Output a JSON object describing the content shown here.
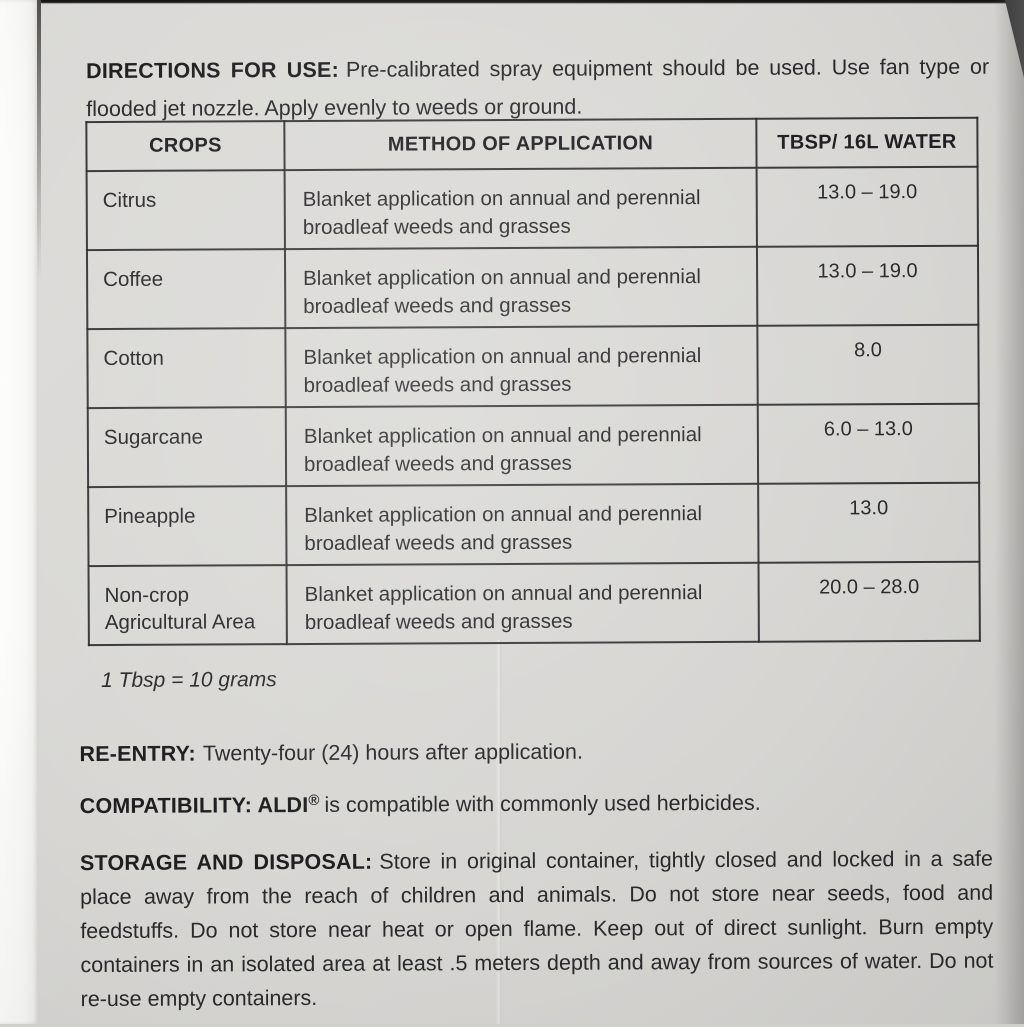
{
  "colors": {
    "label_bg": "#d9d8d5",
    "page_edge_white": "#fdfdfc",
    "text": "#2a2a2d",
    "table_border": "#2a2a2c",
    "photo_corner_dark": "#3a3a3c"
  },
  "directions": {
    "heading": "DIRECTIONS FOR USE:",
    "body": "Pre-calibrated spray equipment should be used. Use fan type or flooded jet nozzle. Apply evenly to weeds or ground."
  },
  "rate_table": {
    "columns": [
      "CROPS",
      "METHOD OF APPLICATION",
      "TBSP/ 16L WATER"
    ],
    "rows": [
      {
        "crop": "Citrus",
        "method": "Blanket application on annual and perennial broadleaf weeds and grasses",
        "rate": "13.0 – 19.0"
      },
      {
        "crop": "Coffee",
        "method": "Blanket application on annual and perennial broadleaf weeds and grasses",
        "rate": "13.0 – 19.0"
      },
      {
        "crop": "Cotton",
        "method": "Blanket application on annual and perennial broadleaf weeds and grasses",
        "rate": "8.0"
      },
      {
        "crop": "Sugarcane",
        "method": "Blanket application on annual and perennial broadleaf weeds and grasses",
        "rate": "6.0 – 13.0"
      },
      {
        "crop": "Pineapple",
        "method": "Blanket application on annual and perennial broadleaf weeds and grasses",
        "rate": "13.0"
      },
      {
        "crop": "Non-crop Agricultural Area",
        "method": "Blanket application on annual and perennial broadleaf weeds and grasses",
        "rate": "20.0 – 28.0"
      }
    ]
  },
  "note": "1 Tbsp = 10 grams",
  "re_entry": {
    "heading": "RE-ENTRY:",
    "body": "Twenty-four (24) hours after application."
  },
  "compatibility": {
    "heading": "COMPATIBILITY: ALDI",
    "registered_mark": "®",
    "body": "is compatible with commonly used herbicides."
  },
  "storage_disposal": {
    "heading": "STORAGE AND DISPOSAL:",
    "body": "Store in original container, tightly closed and locked in a safe place away from the reach of children and animals. Do not store near seeds, food and feedstuffs. Do not store near heat or open flame. Keep out of direct sunlight. Burn empty containers in an isolated area at least .5 meters depth and away from sources of water. Do not re-use empty containers."
  }
}
